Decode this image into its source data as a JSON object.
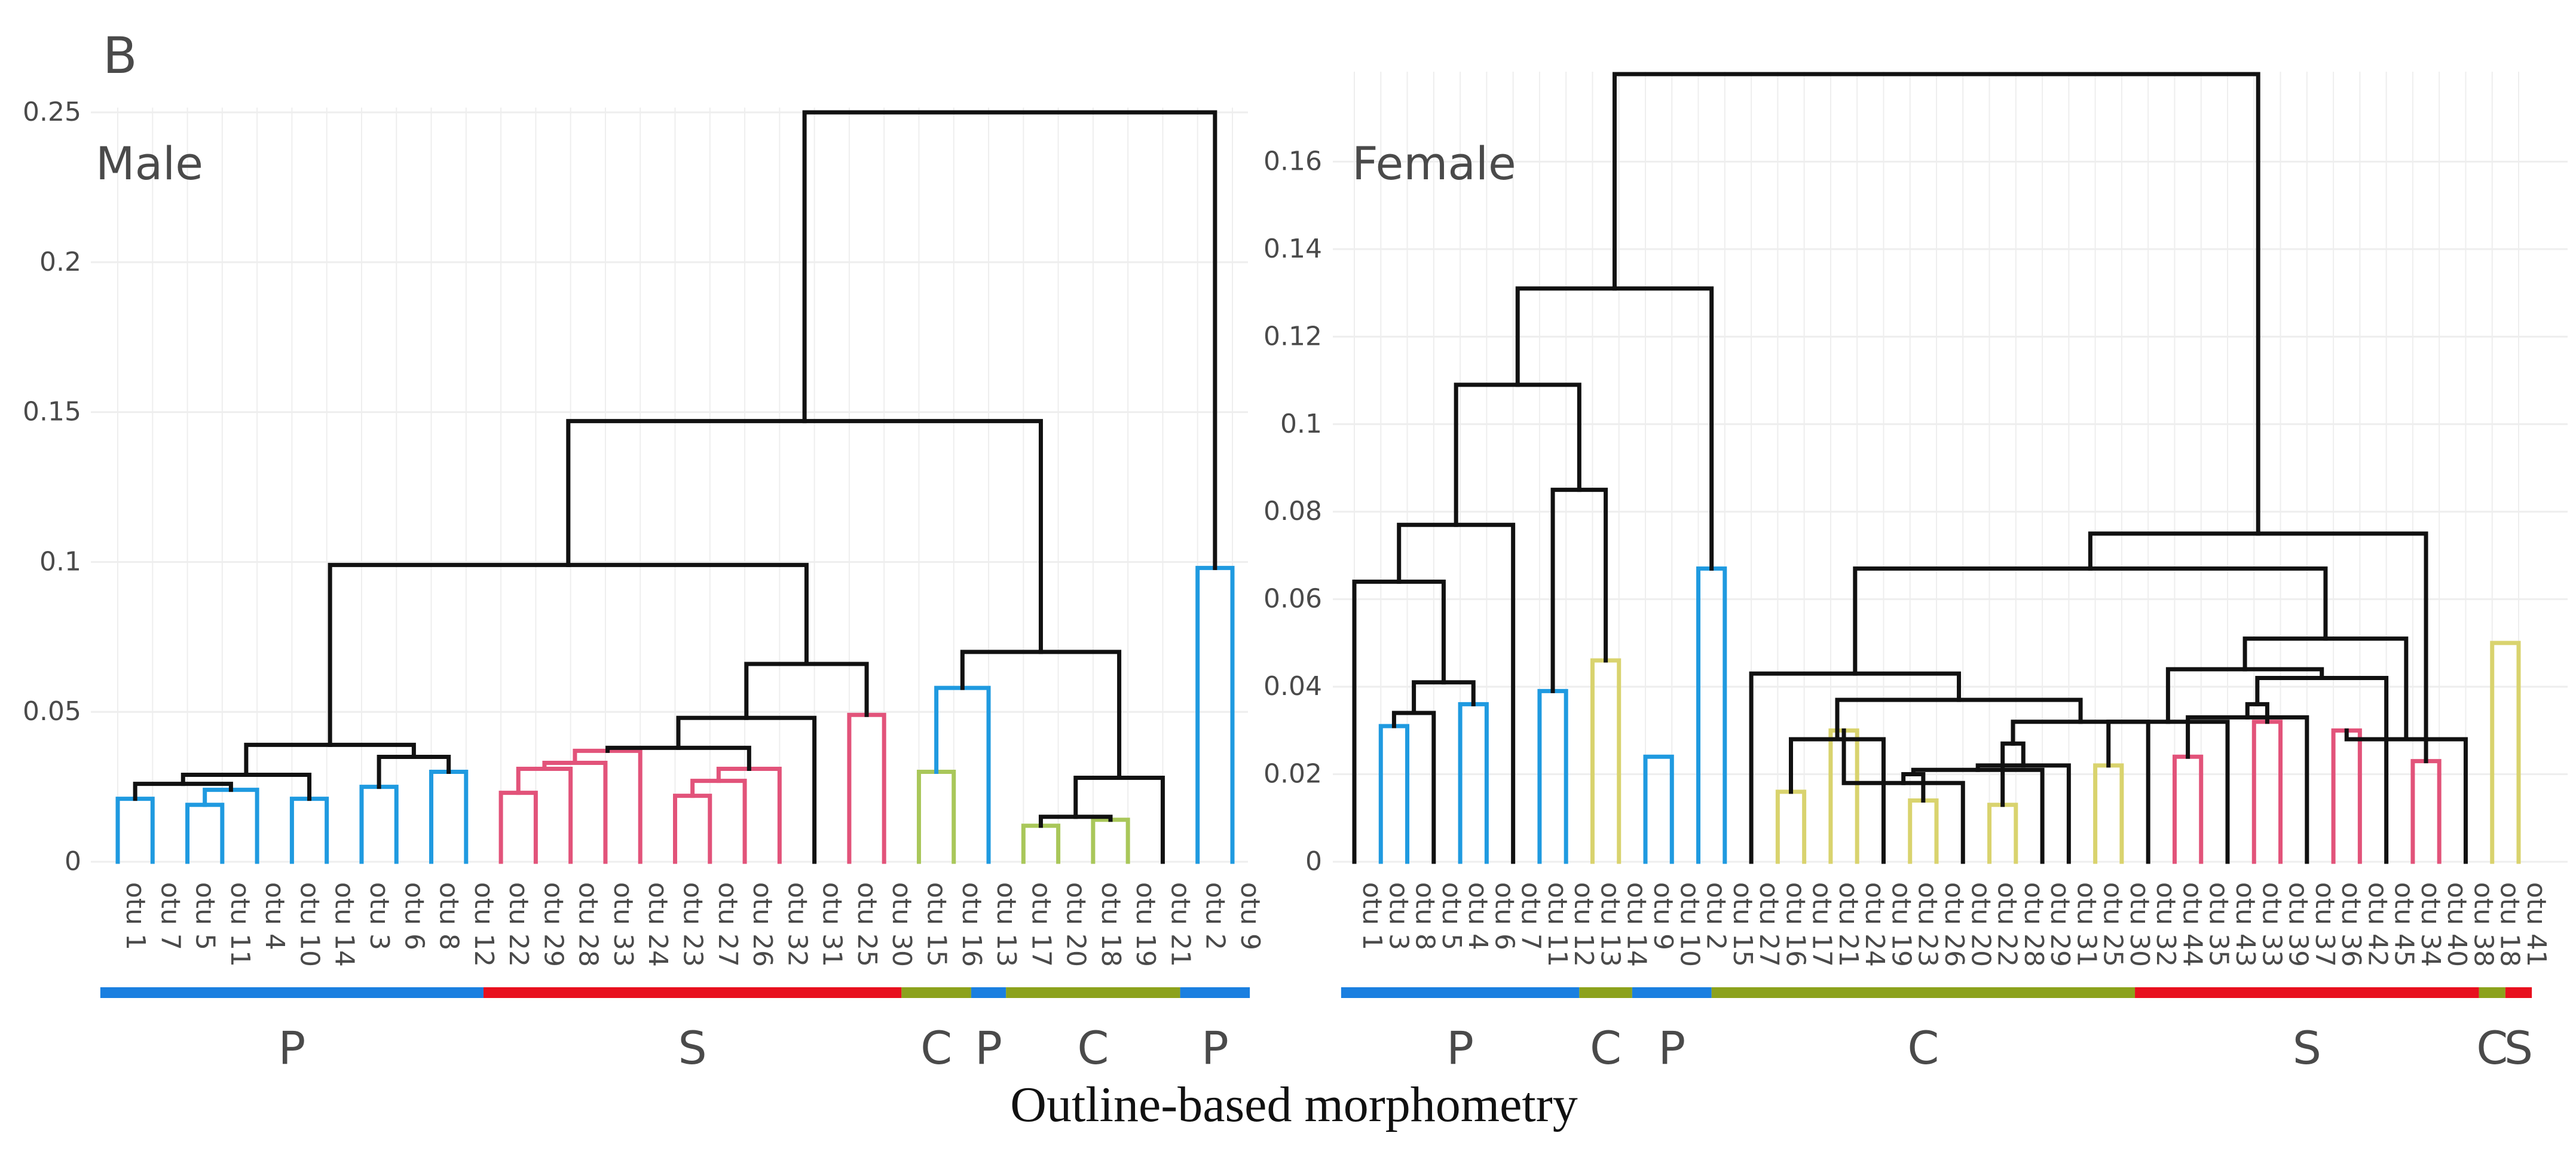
{
  "panel_letter": "B",
  "caption": "Outline-based morphometry",
  "colors": {
    "P": "#1a7fe0",
    "S": "#e8101e",
    "C": "#8ca21c",
    "link": "#111111",
    "grid": "#eeeeee",
    "leaf_blue": "#1f9ae0",
    "leaf_pink": "#e2537a",
    "leaf_yellow": "#d9d36e",
    "leaf_lime": "#a9c75a"
  },
  "chart_data": [
    {
      "type": "dendrogram",
      "title": "Male",
      "ylim": [
        0,
        0.25
      ],
      "yticks": [
        {
          "value": 0,
          "label": "0"
        },
        {
          "value": 0.05,
          "label": "0.05"
        },
        {
          "value": 0.1,
          "label": "0.1"
        },
        {
          "value": 0.15,
          "label": "0.15"
        },
        {
          "value": 0.2,
          "label": "0.2"
        },
        {
          "value": 0.25,
          "label": "0.25"
        }
      ],
      "leaves": [
        "otu 1",
        "otu 7",
        "otu 5",
        "otu 11",
        "otu 4",
        "otu 10",
        "otu 14",
        "otu 3",
        "otu 6",
        "otu 8",
        "otu 12",
        "otu 22",
        "otu 29",
        "otu 28",
        "otu 33",
        "otu 24",
        "otu 23",
        "otu 27",
        "otu 26",
        "otu 32",
        "otu 31",
        "otu 25",
        "otu 30",
        "otu 15",
        "otu 16",
        "otu 13",
        "otu 17",
        "otu 20",
        "otu 18",
        "otu 19",
        "otu 21",
        "otu 2",
        "otu 9"
      ],
      "merges": [
        {
          "a": 0,
          "b": 1,
          "h": 0.021,
          "c": "b"
        },
        {
          "a": 2,
          "b": 3,
          "h": 0.019,
          "c": "b"
        },
        {
          "a": 5,
          "b": 6,
          "h": 0.021,
          "c": "b"
        },
        {
          "a": 7,
          "b": 8,
          "h": 0.025,
          "c": "b"
        },
        {
          "a": 9,
          "b": 10,
          "h": 0.03,
          "c": "b"
        },
        {
          "a": 11,
          "b": 12,
          "h": 0.023,
          "c": "p"
        },
        {
          "a": 16,
          "b": 17,
          "h": 0.022,
          "c": "p"
        },
        {
          "a": 21,
          "b": 22,
          "h": 0.049,
          "c": "p"
        },
        {
          "a": 23,
          "b": 24,
          "h": 0.03,
          "c": "l"
        },
        {
          "a": 26,
          "b": 27,
          "h": 0.012,
          "c": "l"
        },
        {
          "a": 28,
          "b": 29,
          "h": 0.014,
          "c": "l"
        },
        {
          "a": 31,
          "b": 32,
          "h": 0.098,
          "c": "b"
        },
        {
          "a": 34,
          "b": 4,
          "h": 0.024,
          "c": "b"
        },
        {
          "a": 33,
          "b": 45,
          "h": 0.026,
          "c": "k"
        },
        {
          "a": 46,
          "b": 35,
          "h": 0.029,
          "c": "k"
        },
        {
          "a": 36,
          "b": 37,
          "h": 0.035,
          "c": "k"
        },
        {
          "a": 47,
          "b": 48,
          "h": 0.039,
          "c": "k"
        },
        {
          "a": 38,
          "b": 13,
          "h": 0.031,
          "c": "p"
        },
        {
          "a": 50,
          "b": 14,
          "h": 0.033,
          "c": "p"
        },
        {
          "a": 51,
          "b": 15,
          "h": 0.037,
          "c": "p"
        },
        {
          "a": 39,
          "b": 18,
          "h": 0.027,
          "c": "p"
        },
        {
          "a": 53,
          "b": 19,
          "h": 0.031,
          "c": "p"
        },
        {
          "a": 52,
          "b": 54,
          "h": 0.038,
          "c": "k"
        },
        {
          "a": 55,
          "b": 20,
          "h": 0.048,
          "c": "k"
        },
        {
          "a": 56,
          "b": 40,
          "h": 0.066,
          "c": "k"
        },
        {
          "a": 42,
          "b": 43,
          "h": 0.015,
          "c": "k"
        },
        {
          "a": 58,
          "b": 30,
          "h": 0.028,
          "c": "k"
        },
        {
          "a": 41,
          "b": 25,
          "h": 0.058,
          "c": "b"
        },
        {
          "a": 60,
          "b": 59,
          "h": 0.07,
          "c": "k"
        },
        {
          "a": 49,
          "b": 57,
          "h": 0.099,
          "c": "k"
        },
        {
          "a": 62,
          "b": 61,
          "h": 0.147,
          "c": "k"
        },
        {
          "a": 63,
          "b": 44,
          "h": 0.25,
          "c": "k"
        }
      ],
      "groups": [
        {
          "label": "P",
          "from": 0,
          "to": 10,
          "color": "P"
        },
        {
          "label": "S",
          "from": 11,
          "to": 22,
          "color": "S"
        },
        {
          "label": "C",
          "from": 23,
          "to": 24,
          "color": "C"
        },
        {
          "label": "P",
          "from": 25,
          "to": 25,
          "color": "P"
        },
        {
          "label": "C",
          "from": 26,
          "to": 30,
          "color": "C"
        },
        {
          "label": "P",
          "from": 31,
          "to": 32,
          "color": "P"
        }
      ]
    },
    {
      "type": "dendrogram",
      "title": "Female",
      "ylim": [
        0,
        0.18
      ],
      "yticks": [
        {
          "value": 0,
          "label": "0"
        },
        {
          "value": 0.02,
          "label": "0.02"
        },
        {
          "value": 0.04,
          "label": "0.04"
        },
        {
          "value": 0.06,
          "label": "0.06"
        },
        {
          "value": 0.08,
          "label": "0.08"
        },
        {
          "value": 0.1,
          "label": "0.1"
        },
        {
          "value": 0.12,
          "label": "0.12"
        },
        {
          "value": 0.14,
          "label": "0.14"
        },
        {
          "value": 0.16,
          "label": "0.16"
        }
      ],
      "leaves": [
        "otu 1",
        "otu 3",
        "otu 8",
        "otu 5",
        "otu 4",
        "otu 6",
        "otu 7",
        "otu 11",
        "otu 12",
        "otu 13",
        "otu 14",
        "otu 9",
        "otu 10",
        "otu 2",
        "otu 15",
        "otu 27",
        "otu 16",
        "otu 17",
        "otu 21",
        "otu 24",
        "otu 19",
        "otu 23",
        "otu 26",
        "otu 20",
        "otu 22",
        "otu 28",
        "otu 29",
        "otu 31",
        "otu 25",
        "otu 30",
        "otu 32",
        "otu 44",
        "otu 35",
        "otu 43",
        "otu 33",
        "otu 39",
        "otu 37",
        "otu 36",
        "otu 42",
        "otu 45",
        "otu 34",
        "otu 40",
        "otu 38",
        "otu 18",
        "otu 41"
      ],
      "merges": [
        {
          "a": 1,
          "b": 2,
          "h": 0.031,
          "c": "b"
        },
        {
          "a": 4,
          "b": 5,
          "h": 0.036,
          "c": "b"
        },
        {
          "a": 7,
          "b": 8,
          "h": 0.039,
          "c": "b"
        },
        {
          "a": 9,
          "b": 10,
          "h": 0.046,
          "c": "y"
        },
        {
          "a": 11,
          "b": 12,
          "h": 0.024,
          "c": "b"
        },
        {
          "a": 13,
          "b": 14,
          "h": 0.067,
          "c": "b"
        },
        {
          "a": 16,
          "b": 17,
          "h": 0.016,
          "c": "y"
        },
        {
          "a": 18,
          "b": 19,
          "h": 0.03,
          "c": "y"
        },
        {
          "a": 21,
          "b": 22,
          "h": 0.014,
          "c": "y"
        },
        {
          "a": 24,
          "b": 25,
          "h": 0.013,
          "c": "y"
        },
        {
          "a": 28,
          "b": 29,
          "h": 0.022,
          "c": "y"
        },
        {
          "a": 31,
          "b": 32,
          "h": 0.024,
          "c": "p"
        },
        {
          "a": 34,
          "b": 35,
          "h": 0.032,
          "c": "p"
        },
        {
          "a": 37,
          "b": 38,
          "h": 0.03,
          "c": "p"
        },
        {
          "a": 40,
          "b": 41,
          "h": 0.023,
          "c": "p"
        },
        {
          "a": 43,
          "b": 44,
          "h": 0.05,
          "c": "y"
        },
        {
          "a": 45,
          "b": 3,
          "h": 0.034,
          "c": "k"
        },
        {
          "a": 61,
          "b": 46,
          "h": 0.041,
          "c": "k"
        },
        {
          "a": 0,
          "b": 62,
          "h": 0.064,
          "c": "k"
        },
        {
          "a": 63,
          "b": 6,
          "h": 0.077,
          "c": "k"
        },
        {
          "a": 47,
          "b": 48,
          "h": 0.085,
          "c": "k"
        },
        {
          "a": 64,
          "b": 65,
          "h": 0.109,
          "c": "k"
        },
        {
          "a": 66,
          "b": 50,
          "h": 0.131,
          "c": "k"
        },
        {
          "a": 51,
          "b": 20,
          "h": 0.028,
          "c": "k"
        },
        {
          "a": 52,
          "b": 23,
          "h": 0.018,
          "c": "k"
        },
        {
          "a": 69,
          "b": 53,
          "h": 0.02,
          "c": "k"
        },
        {
          "a": 70,
          "b": 26,
          "h": 0.021,
          "c": "k"
        },
        {
          "a": 71,
          "b": 27,
          "h": 0.022,
          "c": "k"
        },
        {
          "a": 72,
          "b": 54,
          "h": 0.027,
          "c": "k"
        },
        {
          "a": 73,
          "b": 30,
          "h": 0.032,
          "c": "k"
        },
        {
          "a": 68,
          "b": 74,
          "h": 0.037,
          "c": "k"
        },
        {
          "a": 15,
          "b": 75,
          "h": 0.043,
          "c": "k"
        },
        {
          "a": 55,
          "b": 33,
          "h": 0.032,
          "c": "k"
        },
        {
          "a": 56,
          "b": 36,
          "h": 0.033,
          "c": "k"
        },
        {
          "a": 78,
          "b": 57,
          "h": 0.036,
          "c": "k"
        },
        {
          "a": 79,
          "b": 39,
          "h": 0.042,
          "c": "k"
        },
        {
          "a": 77,
          "b": 80,
          "h": 0.044,
          "c": "k"
        },
        {
          "a": 58,
          "b": 42,
          "h": 0.028,
          "c": "k"
        },
        {
          "a": 81,
          "b": 82,
          "h": 0.051,
          "c": "k"
        },
        {
          "a": 76,
          "b": 83,
          "h": 0.067,
          "c": "k"
        },
        {
          "a": 84,
          "b": 59,
          "h": 0.075,
          "c": "k"
        },
        {
          "a": 67,
          "b": 85,
          "h": 0.18,
          "c": "k"
        }
      ],
      "groups": [
        {
          "label": "P",
          "from": 0,
          "to": 8,
          "color": "P"
        },
        {
          "label": "C",
          "from": 9,
          "to": 10,
          "color": "C"
        },
        {
          "label": "P",
          "from": 11,
          "to": 13,
          "color": "P"
        },
        {
          "label": "C",
          "from": 14,
          "to": 29,
          "color": "C"
        },
        {
          "label": "S",
          "from": 30,
          "to": 42,
          "color": "S"
        },
        {
          "label": "C",
          "from": 43,
          "to": 43,
          "color": "C"
        },
        {
          "label": "S",
          "from": 44,
          "to": 44,
          "color": "S"
        }
      ]
    }
  ]
}
